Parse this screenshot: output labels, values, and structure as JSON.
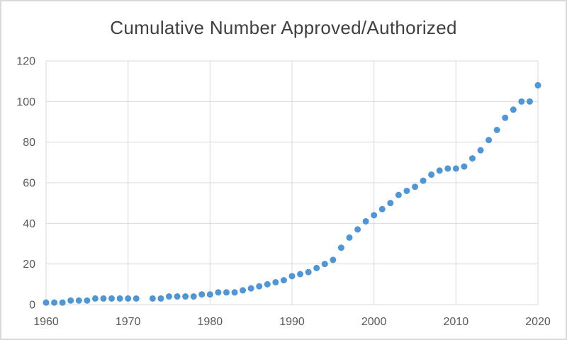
{
  "chart_data": {
    "type": "scatter",
    "title": "Cumulative Number Approved/Authorized",
    "xlabel": "",
    "ylabel": "",
    "years": [
      1960,
      1961,
      1962,
      1963,
      1964,
      1965,
      1966,
      1967,
      1968,
      1969,
      1970,
      1971,
      1972,
      1973,
      1974,
      1975,
      1976,
      1977,
      1978,
      1979,
      1980,
      1981,
      1982,
      1983,
      1984,
      1985,
      1986,
      1987,
      1988,
      1989,
      1990,
      1991,
      1992,
      1993,
      1994,
      1995,
      1996,
      1997,
      1998,
      1999,
      2000,
      2001,
      2002,
      2003,
      2004,
      2005,
      2006,
      2007,
      2008,
      2009,
      2010,
      2011,
      2012,
      2013,
      2014,
      2015,
      2016,
      2017,
      2018,
      2019,
      2020
    ],
    "values": [
      1,
      1,
      1,
      2,
      2,
      2,
      3,
      3,
      3,
      3,
      3,
      3,
      null,
      3,
      3,
      4,
      4,
      4,
      4,
      5,
      5,
      6,
      6,
      6,
      7,
      8,
      9,
      10,
      11,
      12,
      14,
      15,
      16,
      18,
      20,
      22,
      28,
      33,
      37,
      41,
      44,
      47,
      50,
      54,
      56,
      58,
      61,
      64,
      66,
      67,
      67,
      68,
      72,
      76,
      81,
      86,
      92,
      96,
      100,
      100,
      108
    ],
    "x_ticks": [
      1960,
      1970,
      1980,
      1990,
      2000,
      2010,
      2020
    ],
    "y_ticks": [
      0,
      20,
      40,
      60,
      80,
      100,
      120
    ],
    "xlim": [
      1960,
      2020
    ],
    "ylim": [
      0,
      120
    ],
    "grid": true,
    "legend": false,
    "colors": {
      "marker": "#4F96D6",
      "gridline": "#D9D9D9",
      "tick_text": "#595959",
      "title_text": "#404040",
      "border": "#D9D9D9",
      "background": "#FFFFFF"
    }
  }
}
